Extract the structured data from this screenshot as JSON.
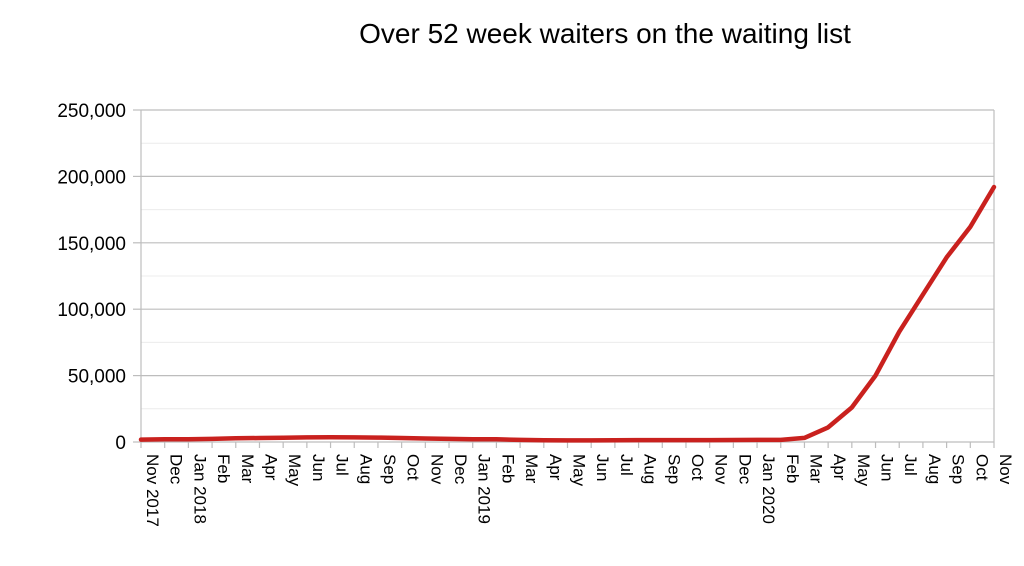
{
  "chart_data": {
    "type": "line",
    "title": "Over 52 week waiters on the waiting list",
    "xlabel": "",
    "ylabel": "",
    "ylim": [
      0,
      250000
    ],
    "yticks": [
      "0",
      "50,000",
      "100,000",
      "150,000",
      "200,000",
      "250,000"
    ],
    "ytick_values": [
      0,
      50000,
      100000,
      150000,
      200000,
      250000
    ],
    "grid": true,
    "legend": "none",
    "categories": [
      "Nov 2017",
      "Dec",
      "Jan 2018",
      "Feb",
      "Mar",
      "Apr",
      "May",
      "Jun",
      "Jul",
      "Aug",
      "Sep",
      "Oct",
      "Nov",
      "Dec",
      "Jan 2019",
      "Feb",
      "Mar",
      "Apr",
      "May",
      "Jun",
      "Jul",
      "Aug",
      "Sep",
      "Oct",
      "Nov",
      "Dec",
      "Jan 2020",
      "Feb",
      "Mar",
      "Apr",
      "May",
      "Jun",
      "Jul",
      "Aug",
      "Sep",
      "Oct",
      "Nov"
    ],
    "series": [
      {
        "color": "#c9211e",
        "values": [
          1800,
          2000,
          2100,
          2300,
          2800,
          3000,
          3200,
          3500,
          3600,
          3500,
          3300,
          3000,
          2600,
          2300,
          2100,
          2000,
          1600,
          1300,
          1200,
          1200,
          1300,
          1400,
          1400,
          1400,
          1400,
          1500,
          1600,
          1600,
          3100,
          11000,
          26000,
          50000,
          83000,
          111000,
          139000,
          162000,
          192000
        ]
      }
    ]
  }
}
